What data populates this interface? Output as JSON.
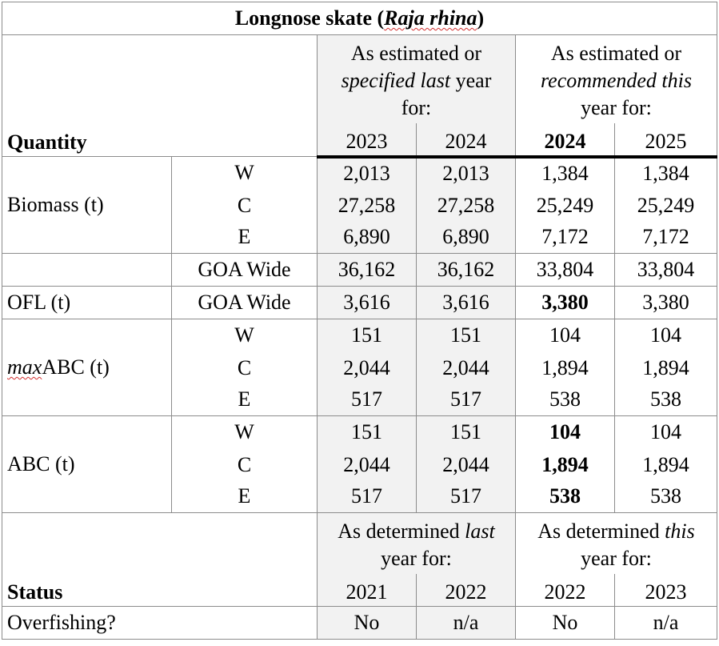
{
  "title": {
    "prefix": "Longnose skate (",
    "species": "Raja rhina",
    "suffix": ")"
  },
  "header": {
    "quantity_label": "Quantity",
    "last_year": {
      "line1": "As estimated or",
      "line2_italic": "specified last",
      "line2_rest": " year",
      "line3": "for:"
    },
    "this_year": {
      "line1": "As estimated or",
      "line2_italic": "recommended this",
      "line3": "year for:"
    },
    "years": [
      "2023",
      "2024",
      "2024",
      "2025"
    ]
  },
  "biomass": {
    "label": "Biomass (t)",
    "rows": [
      {
        "region": "W",
        "v": [
          "2,013",
          "2,013",
          "1,384",
          "1,384"
        ]
      },
      {
        "region": "C",
        "v": [
          "27,258",
          "27,258",
          "25,249",
          "25,249"
        ]
      },
      {
        "region": "E",
        "v": [
          "6,890",
          "6,890",
          "7,172",
          "7,172"
        ]
      }
    ],
    "wide": {
      "region": "GOA Wide",
      "v": [
        "36,162",
        "36,162",
        "33,804",
        "33,804"
      ]
    }
  },
  "ofl": {
    "label": "OFL (t)",
    "region": "GOA Wide",
    "v": [
      "3,616",
      "3,616",
      "3,380",
      "3,380"
    ]
  },
  "maxabc": {
    "label_italic": "max",
    "label_rest": "ABC (t)",
    "rows": [
      {
        "region": "W",
        "v": [
          "151",
          "151",
          "104",
          "104"
        ]
      },
      {
        "region": "C",
        "v": [
          "2,044",
          "2,044",
          "1,894",
          "1,894"
        ]
      },
      {
        "region": "E",
        "v": [
          "517",
          "517",
          "538",
          "538"
        ]
      }
    ]
  },
  "abc": {
    "label": "ABC (t)",
    "rows": [
      {
        "region": "W",
        "v": [
          "151",
          "151",
          "104",
          "104"
        ]
      },
      {
        "region": "C",
        "v": [
          "2,044",
          "2,044",
          "1,894",
          "1,894"
        ]
      },
      {
        "region": "E",
        "v": [
          "517",
          "517",
          "538",
          "538"
        ]
      }
    ]
  },
  "status_header": {
    "status_label": "Status",
    "last": {
      "line1_pre": "As determined ",
      "line1_italic": "last",
      "line2": "year for:"
    },
    "this": {
      "line1_pre": "As determined ",
      "line1_italic": "this",
      "line2": "year for:"
    },
    "years": [
      "2021",
      "2022",
      "2022",
      "2023"
    ]
  },
  "overfishing": {
    "label": "Overfishing?",
    "v": [
      "No",
      "n/a",
      "No",
      "n/a"
    ]
  }
}
